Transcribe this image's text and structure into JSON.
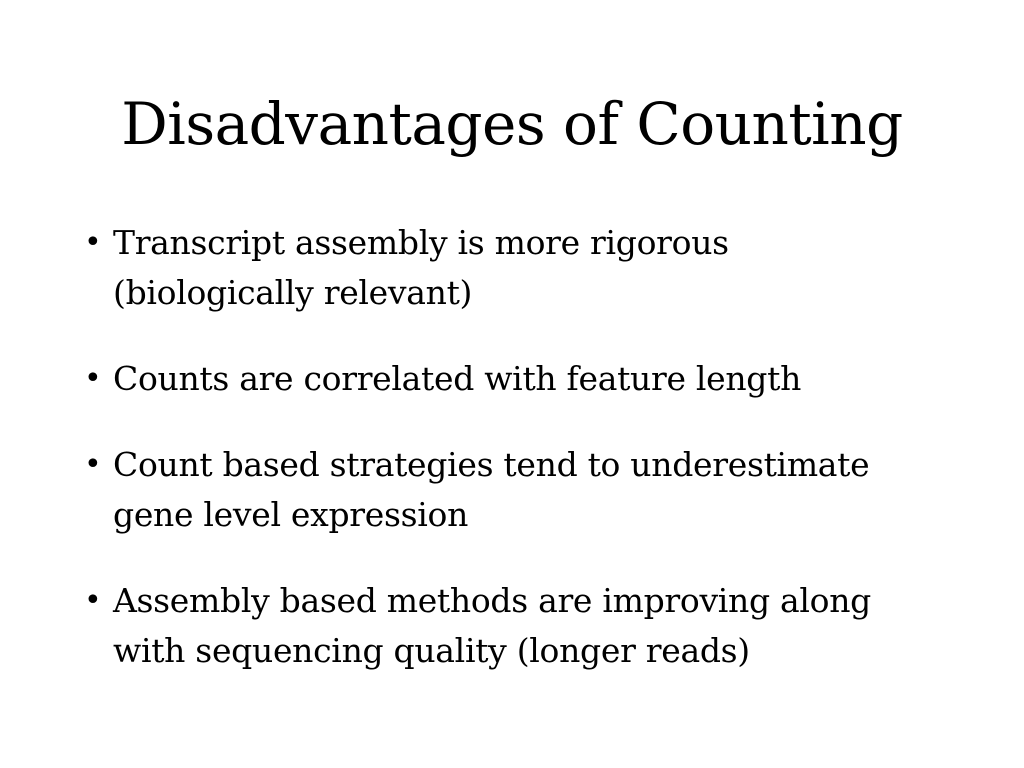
{
  "slide": {
    "title": "Disadvantages of Counting",
    "bullet_symbol": "•",
    "bullets": [
      "Transcript assembly is more rigorous (biologically relevant)",
      "Counts are correlated with feature length",
      "Count based strategies tend to underestimate gene level expression",
      "Assembly based methods are improving along with sequencing quality (longer reads)"
    ]
  }
}
